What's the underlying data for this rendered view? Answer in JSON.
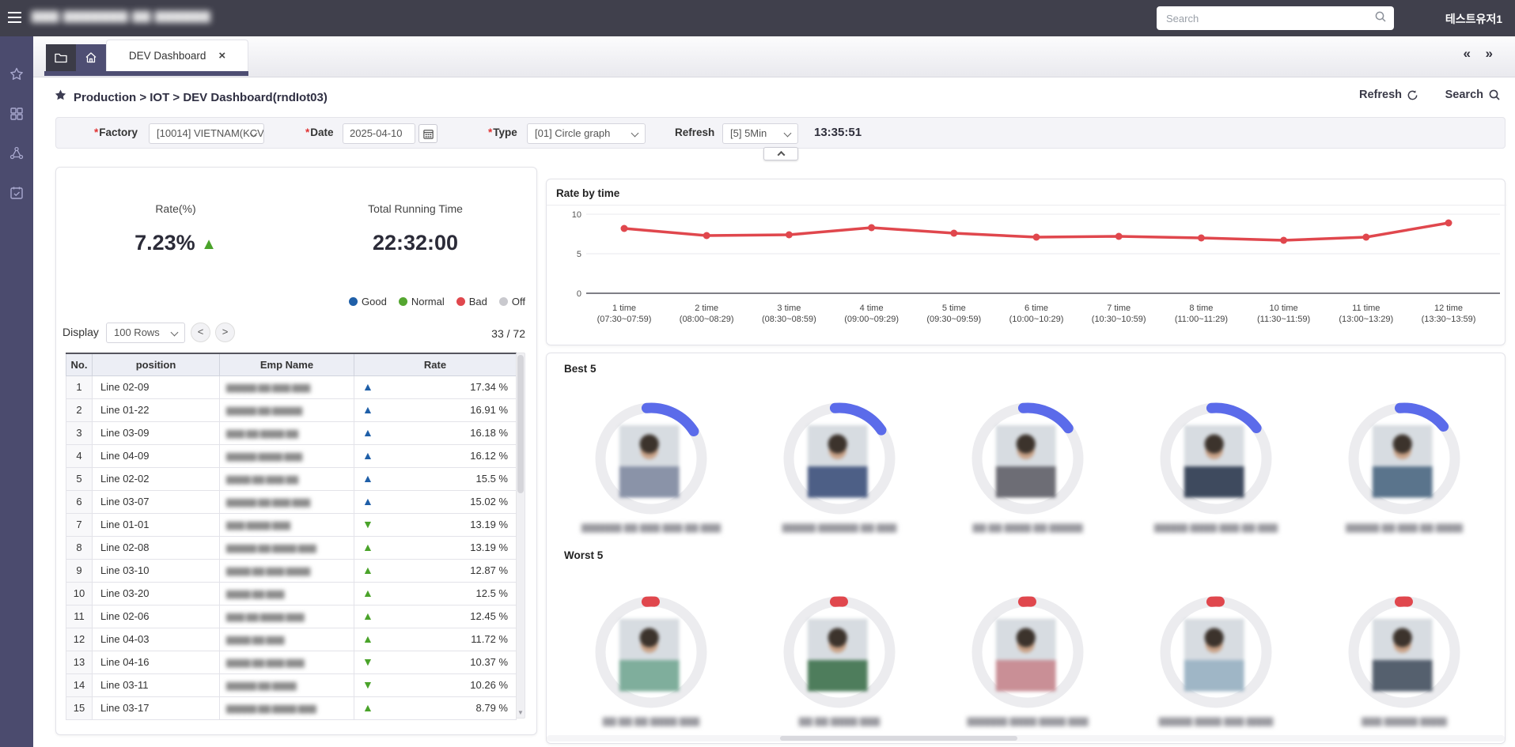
{
  "topbar": {
    "title_blur": "▇▇▇ ▇▇▇▇▇▇▇ ▇▇ ▇▇▇▇▇▇",
    "search_placeholder": "Search",
    "username": "테스트유저1"
  },
  "sidebar": {
    "icons": [
      "star",
      "app-grid",
      "share-network",
      "calendar-check"
    ]
  },
  "tabs": {
    "active_label": "DEV Dashboard",
    "close_glyph": "×",
    "prev_glyph": "«",
    "next_glyph": "»"
  },
  "breadcrumb": {
    "text": "Production > IOT > DEV Dashboard(rndIot03)",
    "refresh_label": "Refresh",
    "search_label": "Search"
  },
  "filters": {
    "factory_label": "Factory",
    "factory_value": "[10014] VIETNAM(KCV",
    "date_label": "Date",
    "date_value": "2025-04-10",
    "type_label": "Type",
    "type_value": "[01] Circle graph",
    "refresh_label": "Refresh",
    "refresh_value": "[5] 5Min",
    "clock": "13:35:51"
  },
  "summary": {
    "rate_label": "Rate(%)",
    "rate_value": "7.23%",
    "rate_trend": "▲",
    "running_label": "Total Running Time",
    "running_value": "22:32:00",
    "legend": [
      {
        "label": "Good",
        "color": "#1f5fa8"
      },
      {
        "label": "Normal",
        "color": "#55a630"
      },
      {
        "label": "Bad",
        "color": "#e0474d"
      },
      {
        "label": "Off",
        "color": "#c9c9ce"
      }
    ]
  },
  "table": {
    "display_label": "Display",
    "rows_per_page": "100 Rows",
    "prev_glyph": "<",
    "next_glyph": ">",
    "page_info": "33 / 72",
    "headers": [
      "No.",
      "position",
      "Emp Name",
      "Rate"
    ],
    "rows": [
      {
        "no": "1",
        "position": "Line 02-09",
        "name_blur": "▇▇▇▇▇ ▇▇ ▇▇▇ ▇▇▇",
        "dir": "up",
        "tri_color": "#1f5fa8",
        "rate": "17.34 %"
      },
      {
        "no": "2",
        "position": "Line 01-22",
        "name_blur": "▇▇▇▇▇ ▇▇ ▇▇▇▇▇",
        "dir": "up",
        "tri_color": "#1f5fa8",
        "rate": "16.91 %"
      },
      {
        "no": "3",
        "position": "Line 03-09",
        "name_blur": "▇▇▇ ▇▇ ▇▇▇▇ ▇▇",
        "dir": "up",
        "tri_color": "#1f5fa8",
        "rate": "16.18 %"
      },
      {
        "no": "4",
        "position": "Line 04-09",
        "name_blur": "▇▇▇▇▇ ▇▇▇▇ ▇▇▇",
        "dir": "up",
        "tri_color": "#1f5fa8",
        "rate": "16.12 %"
      },
      {
        "no": "5",
        "position": "Line 02-02",
        "name_blur": "▇▇▇▇ ▇▇ ▇▇▇ ▇▇",
        "dir": "up",
        "tri_color": "#1f5fa8",
        "rate": "15.5 %"
      },
      {
        "no": "6",
        "position": "Line 03-07",
        "name_blur": "▇▇▇▇▇ ▇▇ ▇▇▇ ▇▇▇",
        "dir": "up",
        "tri_color": "#1f5fa8",
        "rate": "15.02 %"
      },
      {
        "no": "7",
        "position": "Line 01-01",
        "name_blur": "▇▇▇ ▇▇▇▇ ▇▇▇",
        "dir": "down",
        "tri_color": "#4aa32a",
        "rate": "13.19 %"
      },
      {
        "no": "8",
        "position": "Line 02-08",
        "name_blur": "▇▇▇▇▇ ▇▇ ▇▇▇▇ ▇▇▇",
        "dir": "up",
        "tri_color": "#4aa32a",
        "rate": "13.19 %"
      },
      {
        "no": "9",
        "position": "Line 03-10",
        "name_blur": "▇▇▇▇ ▇▇ ▇▇▇ ▇▇▇▇",
        "dir": "up",
        "tri_color": "#4aa32a",
        "rate": "12.87 %"
      },
      {
        "no": "10",
        "position": "Line 03-20",
        "name_blur": "▇▇▇▇ ▇▇ ▇▇▇",
        "dir": "up",
        "tri_color": "#4aa32a",
        "rate": "12.5 %"
      },
      {
        "no": "11",
        "position": "Line 02-06",
        "name_blur": "▇▇▇ ▇▇ ▇▇▇▇ ▇▇▇",
        "dir": "up",
        "tri_color": "#4aa32a",
        "rate": "12.45 %"
      },
      {
        "no": "12",
        "position": "Line 04-03",
        "name_blur": "▇▇▇▇ ▇▇ ▇▇▇",
        "dir": "up",
        "tri_color": "#4aa32a",
        "rate": "11.72 %"
      },
      {
        "no": "13",
        "position": "Line 04-16",
        "name_blur": "▇▇▇▇ ▇▇ ▇▇▇ ▇▇▇",
        "dir": "down",
        "tri_color": "#4aa32a",
        "rate": "10.37 %"
      },
      {
        "no": "14",
        "position": "Line 03-11",
        "name_blur": "▇▇▇▇▇ ▇▇ ▇▇▇▇",
        "dir": "down",
        "tri_color": "#4aa32a",
        "rate": "10.26 %"
      },
      {
        "no": "15",
        "position": "Line 03-17",
        "name_blur": "▇▇▇▇▇ ▇▇ ▇▇▇▇ ▇▇▇",
        "dir": "up",
        "tri_color": "#4aa32a",
        "rate": "8.79 %"
      }
    ]
  },
  "chart_data": {
    "type": "line",
    "title": "Rate by time",
    "x_labels_line1": [
      "1 time",
      "2 time",
      "3 time",
      "4 time",
      "5 time",
      "6 time",
      "7 time",
      "8 time",
      "10 time",
      "11 time",
      "12 time"
    ],
    "x_labels_line2": [
      "(07:30~07:59)",
      "(08:00~08:29)",
      "(08:30~08:59)",
      "(09:00~09:29)",
      "(09:30~09:59)",
      "(10:00~10:29)",
      "(10:30~10:59)",
      "(11:00~11:29)",
      "(11:30~11:59)",
      "(13:00~13:29)",
      "(13:30~13:59)"
    ],
    "values": [
      8.2,
      7.3,
      7.4,
      8.3,
      7.6,
      7.1,
      7.2,
      7.0,
      6.7,
      7.1,
      8.9
    ],
    "yticks": [
      0,
      5,
      10
    ],
    "ylim": [
      0,
      10
    ],
    "grid": true,
    "legend_position": "none",
    "line_color": "#e0474d"
  },
  "best5": {
    "title": "Best 5",
    "arc_color": "#5b6bea",
    "items": [
      {
        "arc_pct": 17.34,
        "caption_blur": "▇▇▇▇▇▇ ▇▇ ▇▇▇ ▇▇▇ ▇▇ ▇▇▇"
      },
      {
        "arc_pct": 16.91,
        "caption_blur": "▇▇▇▇▇ ▇▇▇▇▇▇ ▇▇ ▇▇▇"
      },
      {
        "arc_pct": 16.18,
        "caption_blur": "▇▇ ▇▇ ▇▇▇▇ ▇▇ ▇▇▇▇▇"
      },
      {
        "arc_pct": 16.12,
        "caption_blur": "▇▇▇▇▇ ▇▇▇▇ ▇▇▇ ▇▇ ▇▇▇"
      },
      {
        "arc_pct": 15.5,
        "caption_blur": "▇▇▇▇▇ ▇▇ ▇▇▇ ▇▇ ▇▇▇▇"
      }
    ]
  },
  "worst5": {
    "title": "Worst 5",
    "arc_color": "#e0474d",
    "items": [
      {
        "arc_pct": 2.5,
        "caption_blur": "▇▇ ▇▇ ▇▇ ▇▇▇▇ ▇▇▇"
      },
      {
        "arc_pct": 2.5,
        "caption_blur": "▇▇ ▇▇ ▇▇▇▇ ▇▇▇"
      },
      {
        "arc_pct": 2.5,
        "caption_blur": "▇▇▇▇▇▇ ▇▇▇▇ ▇▇▇▇ ▇▇▇"
      },
      {
        "arc_pct": 2.5,
        "caption_blur": "▇▇▇▇▇ ▇▇▇▇ ▇▇▇ ▇▇▇▇"
      },
      {
        "arc_pct": 2.5,
        "caption_blur": "▇▇▇ ▇▇▇▇▇ ▇▇▇▇"
      }
    ]
  }
}
